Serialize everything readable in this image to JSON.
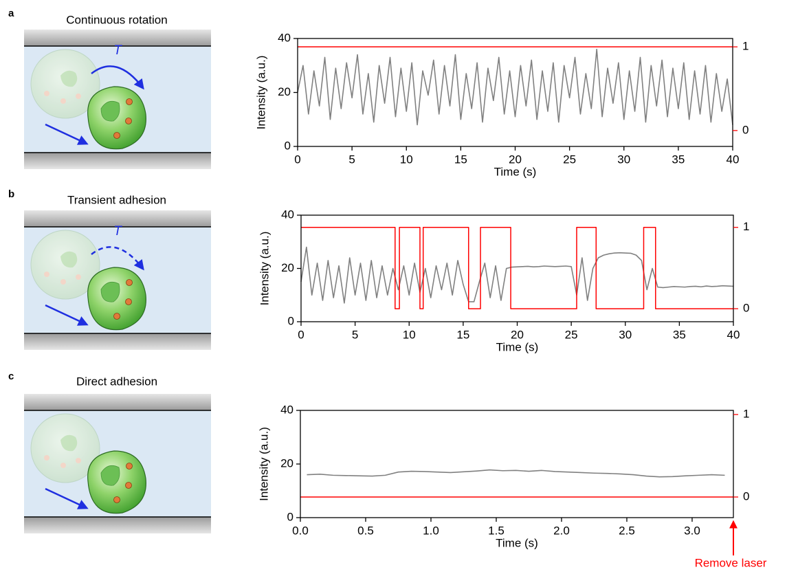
{
  "panels": [
    {
      "label": "a",
      "title": "Continuous rotation",
      "torque_label": "T"
    },
    {
      "label": "b",
      "title": "Transient adhesion",
      "torque_label": "T"
    },
    {
      "label": "c",
      "title": "Direct adhesion"
    }
  ],
  "chart_data": [
    {
      "type": "line",
      "x_label": "Time (s)",
      "y_label": "Intensity (a.u.)",
      "xlim": [
        0,
        40
      ],
      "xticks": [
        0,
        5,
        10,
        15,
        20,
        25,
        30,
        35,
        40
      ],
      "ylim": [
        0,
        40
      ],
      "yticks": [
        0,
        20,
        40
      ],
      "y2lim": [
        -0.19,
        1.1
      ],
      "y2ticks": [
        0,
        1
      ],
      "x": [
        0,
        0.5,
        1,
        1.5,
        2,
        2.5,
        3,
        3.5,
        4,
        4.5,
        5,
        5.5,
        6,
        6.5,
        7,
        7.5,
        8,
        8.5,
        9,
        9.5,
        10,
        10.5,
        11,
        11.5,
        12,
        12.5,
        13,
        13.5,
        14,
        14.5,
        15,
        15.5,
        16,
        16.5,
        17,
        17.5,
        18,
        18.5,
        19,
        19.5,
        20,
        20.5,
        21,
        21.5,
        22,
        22.5,
        23,
        23.5,
        24,
        24.5,
        25,
        25.5,
        26,
        26.5,
        27,
        27.5,
        28,
        28.5,
        29,
        29.5,
        30,
        30.5,
        31,
        31.5,
        32,
        32.5,
        33,
        33.5,
        34,
        34.5,
        35,
        35.5,
        36,
        36.5,
        37,
        37.5,
        38,
        38.5,
        39,
        39.5,
        40
      ],
      "series": [
        {
          "color": "#808080",
          "values": [
            20,
            30,
            12,
            28,
            15,
            33,
            10,
            29,
            14,
            31,
            18,
            34,
            12,
            27,
            9,
            30,
            16,
            33,
            11,
            29,
            13,
            31,
            8,
            28,
            19,
            32,
            12,
            30,
            15,
            34,
            10,
            27,
            14,
            31,
            9,
            29,
            17,
            33,
            12,
            28,
            11,
            30,
            15,
            32,
            10,
            28,
            13,
            31,
            9,
            30,
            18,
            33,
            12,
            27,
            14,
            36,
            11,
            29,
            16,
            31,
            10,
            28,
            13,
            33,
            9,
            30,
            15,
            32,
            11,
            29,
            14,
            31,
            10,
            28,
            12,
            30,
            9,
            27,
            13,
            25,
            8
          ]
        },
        {
          "color": "#ff0000",
          "axis": "y2",
          "x": [
            0,
            40
          ],
          "values": [
            1,
            1
          ]
        }
      ]
    },
    {
      "type": "line",
      "x_label": "Time (s)",
      "y_label": "Intensity (a.u.)",
      "xlim": [
        0,
        40
      ],
      "xticks": [
        0,
        5,
        10,
        15,
        20,
        25,
        30,
        35,
        40
      ],
      "ylim": [
        0,
        40
      ],
      "yticks": [
        0,
        20,
        40
      ],
      "y2lim": [
        -0.16,
        1.15
      ],
      "y2ticks": [
        0,
        1
      ],
      "x": [
        0,
        0.5,
        1,
        1.5,
        2,
        2.5,
        3,
        3.5,
        4,
        4.5,
        5,
        5.5,
        6,
        6.5,
        7,
        7.5,
        8,
        8.5,
        9,
        9.5,
        10,
        10.5,
        11,
        11.5,
        12,
        12.5,
        13,
        13.5,
        14,
        14.5,
        15,
        15.5,
        16,
        16.5,
        17,
        17.5,
        18,
        18.5,
        19,
        19.5,
        20,
        20.5,
        21,
        21.5,
        22,
        22.5,
        23,
        23.5,
        24,
        24.5,
        25,
        25.5,
        26,
        26.5,
        27,
        27.5,
        28,
        28.5,
        29,
        29.5,
        30,
        30.5,
        31,
        31.5,
        32,
        32.5,
        33,
        33.5,
        34,
        34.5,
        35,
        35.5,
        36,
        36.5,
        37,
        37.5,
        38,
        38.5,
        39,
        39.5,
        40
      ],
      "series": [
        {
          "color": "#808080",
          "values": [
            15,
            28,
            10,
            22,
            8,
            23,
            9,
            21,
            7,
            24,
            10,
            22,
            8,
            23,
            9,
            21,
            10,
            20,
            12,
            21,
            10,
            22,
            11,
            20,
            9,
            21,
            12,
            22,
            10,
            23,
            14,
            7.5,
            7.5,
            15,
            22,
            9,
            21,
            8,
            20,
            20.5,
            20.6,
            20.7,
            20.8,
            20.6,
            20.7,
            20.9,
            20.8,
            20.7,
            20.8,
            20.9,
            20.7,
            10,
            24,
            8,
            20,
            24,
            25,
            25.5,
            25.8,
            25.9,
            25.8,
            25.7,
            25,
            23,
            12,
            20,
            13,
            12.8,
            13,
            13.2,
            13.1,
            13,
            13.2,
            13.3,
            13.1,
            13.4,
            13.2,
            13.3,
            13.5,
            13.4,
            13.3
          ]
        },
        {
          "color": "#ff0000",
          "axis": "y2",
          "x": [
            0,
            8.7,
            8.7,
            9.1,
            9.1,
            11.0,
            11.0,
            11.3,
            11.3,
            15.5,
            15.5,
            16.6,
            16.6,
            19.4,
            19.4,
            25.5,
            25.5,
            27.3,
            27.3,
            31.7,
            31.7,
            32.8,
            32.8,
            40
          ],
          "values": [
            1,
            1,
            0,
            0,
            1,
            1,
            0,
            0,
            1,
            1,
            0,
            0,
            1,
            1,
            0,
            0,
            1,
            1,
            0,
            0,
            1,
            1,
            0,
            0
          ]
        }
      ]
    },
    {
      "type": "line",
      "x_label": "Time (s)",
      "y_label": "Intensity (a.u.)",
      "xlim": [
        0,
        3.316
      ],
      "xticks": [
        {
          "value": 0,
          "label": "0.0"
        },
        0.5,
        {
          "value": 1,
          "label": "1.0"
        },
        1.5,
        {
          "value": 2,
          "label": "2.0"
        },
        2.5,
        {
          "value": 3,
          "label": "3.0"
        }
      ],
      "ylim": [
        0,
        40
      ],
      "yticks": [
        0,
        20,
        40
      ],
      "y2lim": [
        -0.25,
        1.05
      ],
      "y2ticks": [
        0,
        1
      ],
      "annotation": "Remove laser",
      "x": [
        0.05,
        0.15,
        0.25,
        0.35,
        0.45,
        0.55,
        0.65,
        0.75,
        0.85,
        0.95,
        1.05,
        1.15,
        1.25,
        1.35,
        1.45,
        1.55,
        1.65,
        1.75,
        1.85,
        1.95,
        2.05,
        2.15,
        2.25,
        2.35,
        2.45,
        2.55,
        2.65,
        2.75,
        2.85,
        2.95,
        3.05,
        3.15,
        3.25
      ],
      "series": [
        {
          "color": "#808080",
          "values": [
            16,
            16.2,
            15.8,
            15.7,
            15.6,
            15.5,
            15.8,
            17,
            17.3,
            17.2,
            17,
            16.8,
            17.1,
            17.4,
            17.8,
            17.5,
            17.6,
            17.3,
            17.6,
            17.2,
            17,
            16.8,
            16.6,
            16.5,
            16.3,
            16,
            15.5,
            15.2,
            15.3,
            15.6,
            15.8,
            16,
            15.8
          ]
        },
        {
          "color": "#ff0000",
          "axis": "y2",
          "x": [
            0,
            3.316
          ],
          "values": [
            0,
            0
          ]
        }
      ]
    }
  ]
}
